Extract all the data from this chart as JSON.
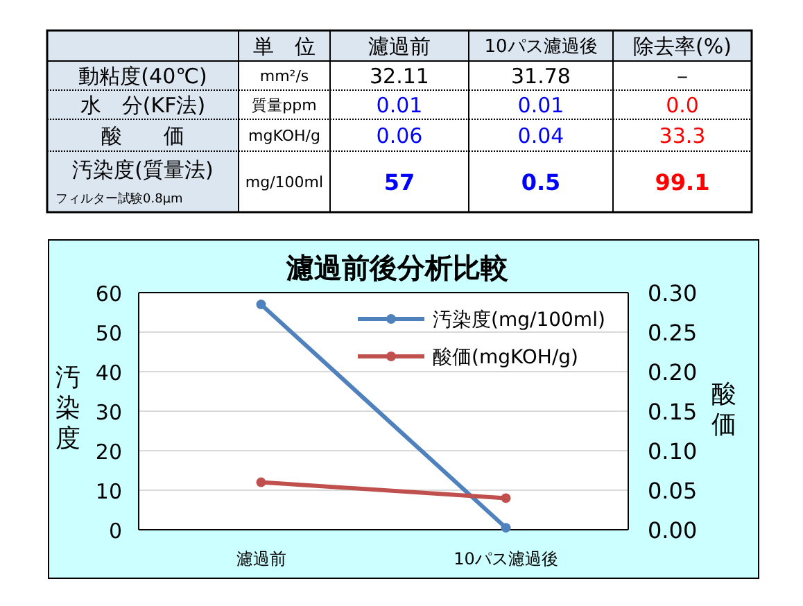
{
  "chart_data": [
    {
      "type": "other",
      "annotations": [
        "単　位",
        "濾過前",
        "10パス濾過後",
        "除去率(%)",
        "動粘度(40℃)",
        "mm²/s",
        "32.11",
        "31.78",
        "－",
        "水　分(KF法)",
        "質量ppm",
        "0.01",
        "0.01",
        "0.0",
        "酸　　価",
        "mgKOH/g",
        "0.06",
        "0.04",
        "33.3",
        "汚染度(質量法)",
        "mg/100ml",
        "57",
        "0.5",
        "99.1",
        "フィルター試験0.8μm"
      ]
    },
    {
      "type": "line",
      "title": "濾過前後分析比較",
      "ylabel": "汚染度",
      "y2label": "酸価",
      "categories": [
        "濾過前",
        "10パス濾過後"
      ],
      "series": [
        {
          "name": "汚染度(mg/100ml)",
          "color": "#4f81bd",
          "values": [
            57,
            0.5
          ]
        },
        {
          "name": "酸価(mgKOH/g)",
          "color": "#c0504d",
          "values": [
            0.06,
            0.04
          ],
          "axis": "y2"
        }
      ],
      "ylim": [
        0,
        60
      ],
      "yticks": [
        0,
        10,
        20,
        30,
        40,
        50,
        60
      ],
      "y2lim": [
        0,
        0.3
      ],
      "y2ticks": [
        {
          "value": 0,
          "label": "0.00"
        },
        {
          "value": 0.05,
          "label": "0.05"
        },
        {
          "value": 0.1,
          "label": "0.10"
        },
        {
          "value": 0.15,
          "label": "0.15"
        },
        {
          "value": 0.2,
          "label": "0.20"
        },
        {
          "value": 0.25,
          "label": "0.25"
        },
        {
          "value": 0.3,
          "label": "0.30"
        }
      ],
      "grid": "y",
      "legend": "top right",
      "marker": "circle",
      "line_style": "solid"
    }
  ]
}
